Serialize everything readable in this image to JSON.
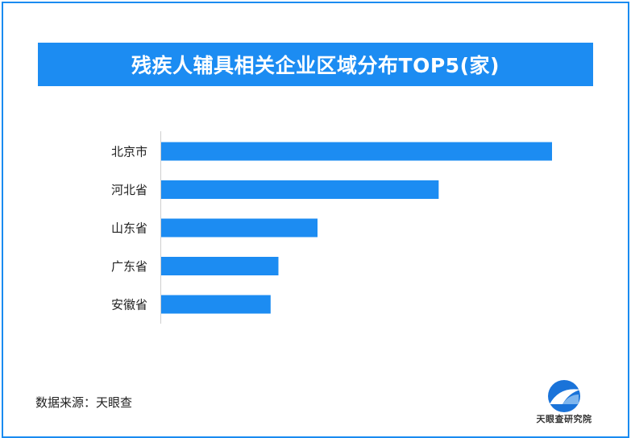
{
  "chart_data": {
    "type": "bar",
    "orientation": "horizontal",
    "title": "残疾人辅具相关企业区域分布TOP5(家)",
    "categories": [
      "北京市",
      "河北省",
      "山东省",
      "广东省",
      "安徽省"
    ],
    "values": [
      100,
      71,
      40,
      30,
      28
    ],
    "bar_color": "#1c8cf2",
    "grid": false
  },
  "footer": {
    "source": "数据来源：天眼查",
    "logo_text": "天眼查研究院"
  },
  "colors": {
    "accent": "#1c8cf2",
    "frame": "#1a8bf0"
  }
}
